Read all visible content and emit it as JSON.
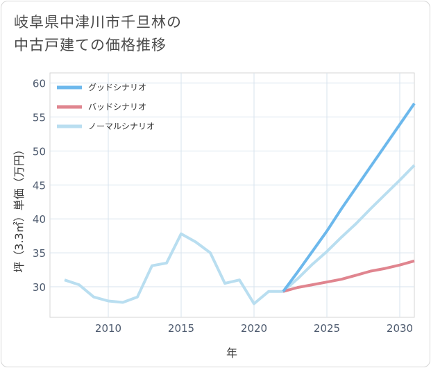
{
  "chart_data": {
    "type": "line",
    "title_lines": [
      "岐阜県中津川市千旦林の",
      "中古戸建ての価格推移"
    ],
    "xlabel": "年",
    "ylabel": "坪（3.3㎡）単価（万円）",
    "xlim": [
      2006,
      2031
    ],
    "ylim": [
      25.5,
      61.5
    ],
    "xticks": [
      2010,
      2015,
      2020,
      2025,
      2030
    ],
    "yticks": [
      30,
      35,
      40,
      45,
      50,
      55,
      60
    ],
    "grid": true,
    "legend_position": "top-left",
    "series": [
      {
        "name": "グッドシナリオ",
        "color": "#6cb8ec",
        "x": [
          2022,
          2023,
          2024,
          2025,
          2026,
          2027,
          2028,
          2029,
          2030,
          2031
        ],
        "values": [
          29.3,
          32.2,
          35.2,
          38.2,
          41.5,
          44.6,
          47.7,
          50.8,
          53.9,
          57.0
        ]
      },
      {
        "name": "バッドシナリオ",
        "color": "#e0858f",
        "x": [
          2022,
          2023,
          2024,
          2025,
          2026,
          2027,
          2028,
          2029,
          2030,
          2031
        ],
        "values": [
          29.3,
          29.9,
          30.3,
          30.7,
          31.1,
          31.7,
          32.3,
          32.7,
          33.2,
          33.8
        ]
      },
      {
        "name": "ノーマルシナリオ",
        "color": "#b9def0",
        "x": [
          2007,
          2008,
          2009,
          2010,
          2011,
          2012,
          2013,
          2014,
          2015,
          2016,
          2017,
          2018,
          2019,
          2020,
          2021,
          2022,
          2023,
          2024,
          2025,
          2026,
          2027,
          2028,
          2029,
          2030,
          2031
        ],
        "values": [
          31.0,
          30.3,
          28.5,
          27.9,
          27.7,
          28.5,
          33.1,
          33.5,
          37.8,
          36.6,
          35.0,
          30.5,
          31.0,
          27.5,
          29.3,
          29.3,
          31.2,
          33.3,
          35.2,
          37.3,
          39.3,
          41.5,
          43.6,
          45.7,
          47.9
        ]
      }
    ]
  }
}
